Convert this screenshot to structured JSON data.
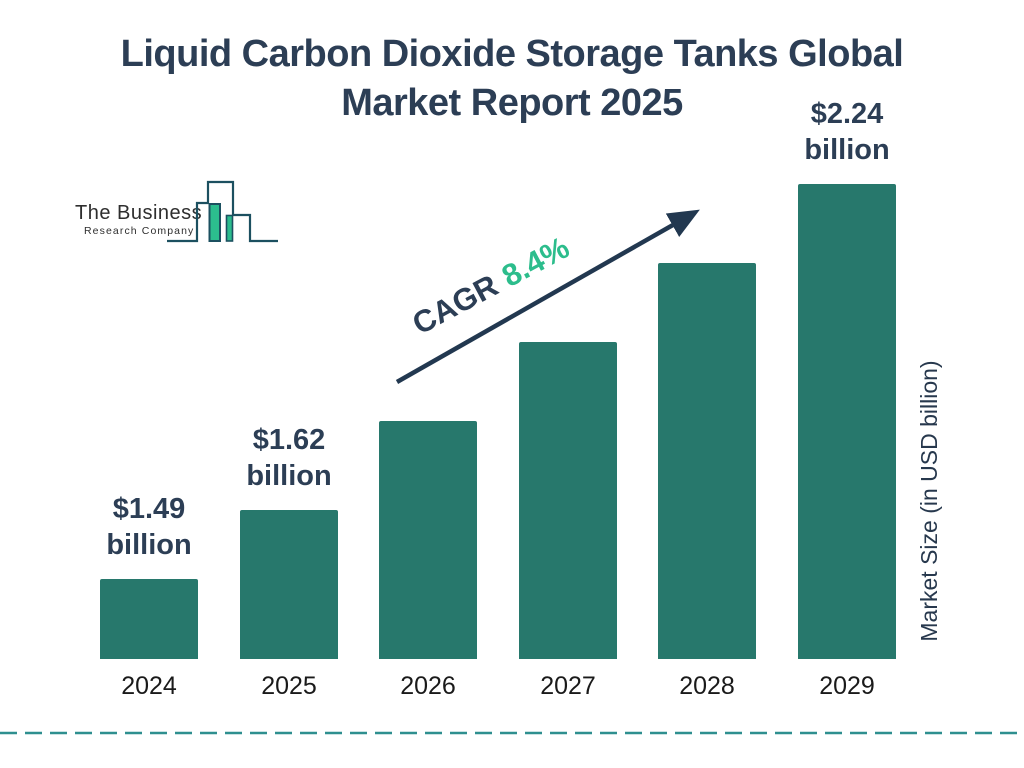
{
  "title": {
    "line1": "Liquid Carbon Dioxide Storage Tanks Global",
    "line2": "Market Report 2025"
  },
  "logo": {
    "line1": "The Business",
    "line2": "Research Company",
    "icon": "bar-chart-logo",
    "outline_color": "#1C5060",
    "accent_color": "#2CBD8E"
  },
  "cagr": {
    "label": "CAGR",
    "value": "8.4%",
    "label_color": "#2C3E55",
    "value_color": "#2CBD8C"
  },
  "chart_data": {
    "type": "bar",
    "title": "Liquid Carbon Dioxide Storage Tanks Global Market Report 2025",
    "categories": [
      "2024",
      "2025",
      "2026",
      "2027",
      "2028",
      "2029"
    ],
    "values": [
      1.49,
      1.62,
      1.79,
      1.94,
      2.09,
      2.24
    ],
    "value_labels": [
      {
        "line1": "$1.49",
        "line2": "billion"
      },
      {
        "line1": "$1.62",
        "line2": "billion"
      },
      null,
      null,
      null,
      {
        "line1": "$2.24",
        "line2": "billion"
      }
    ],
    "labeled_points": {
      "2024": "$1.49 billion",
      "2025": "$1.62 billion",
      "2029": "$2.24 billion"
    },
    "cagr": "8.4%",
    "xlabel": "",
    "ylabel": "Market Size (in USD billion)",
    "ylim": [
      1.34,
      2.35
    ],
    "grid": false,
    "legend": false,
    "bar_color": "#27786C"
  },
  "colors": {
    "title_navy": "#2C3E55",
    "bar_teal": "#27786C",
    "accent_green": "#2CBD8C",
    "divider_teal": "#2E8F8F",
    "arrow_navy": "#223850",
    "year_text": "#1A1A1A"
  }
}
